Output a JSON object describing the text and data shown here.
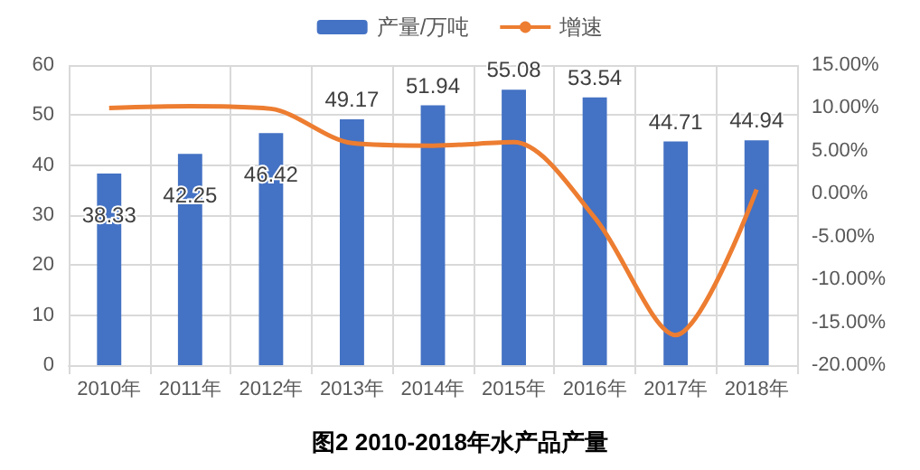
{
  "chart_data": {
    "type": "bar",
    "title": "图2 2010-2018年水产品产量",
    "categories": [
      "2010年",
      "2011年",
      "2012年",
      "2013年",
      "2014年",
      "2015年",
      "2016年",
      "2017年",
      "2018年"
    ],
    "series": [
      {
        "name": "产量/万吨",
        "color": "#4472c4",
        "values": [
          38.33,
          42.25,
          46.42,
          49.17,
          51.94,
          55.08,
          53.54,
          44.71,
          44.94
        ],
        "data_labels": true
      },
      {
        "name": "增速",
        "type": "line",
        "axis": "y2",
        "color": "#ed7d31",
        "values": [
          10.0,
          10.2,
          9.9,
          5.9,
          5.6,
          6.0,
          -2.8,
          -16.5,
          0.5
        ]
      }
    ],
    "ylim": [
      0,
      60
    ],
    "yticks": [
      0,
      10,
      20,
      30,
      40,
      50,
      60
    ],
    "y2lim": [
      -20,
      15
    ],
    "y2ticks": [
      {
        "value": -20,
        "label": "-20.00%"
      },
      {
        "value": -15,
        "label": "-15.00%"
      },
      {
        "value": -10,
        "label": "-10.00%"
      },
      {
        "value": -5,
        "label": "-5.00%"
      },
      {
        "value": 0,
        "label": "0.00%"
      },
      {
        "value": 5,
        "label": "5.00%"
      },
      {
        "value": 10,
        "label": "10.00%"
      },
      {
        "value": 15,
        "label": "15.00%"
      }
    ],
    "grid": true,
    "legend": "top",
    "marker": "none"
  }
}
